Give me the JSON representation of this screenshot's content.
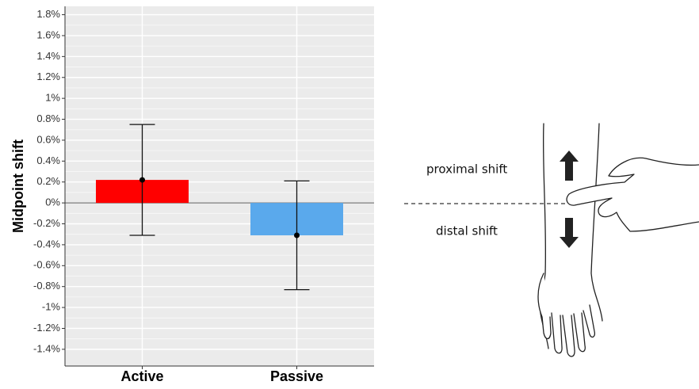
{
  "chart_data": {
    "type": "bar",
    "y_label": "Midpoint shift",
    "categories": [
      "Active",
      "Passive"
    ],
    "values": [
      0.22,
      -0.31
    ],
    "errors": [
      0.53,
      0.52
    ],
    "colors": [
      "#ff0000",
      "#5aa9ec"
    ],
    "ylim": [
      -1.56,
      1.88
    ],
    "yticks": [
      {
        "value": -1.4,
        "label": "-1.4%"
      },
      {
        "value": -1.2,
        "label": "-1.2%"
      },
      {
        "value": -1,
        "label": "-1%"
      },
      {
        "value": -0.8,
        "label": "-0.8%"
      },
      {
        "value": -0.6,
        "label": "-0.6%"
      },
      {
        "value": -0.4,
        "label": "-0.4%"
      },
      {
        "value": -0.2,
        "label": "-0.2%"
      },
      {
        "value": 0,
        "label": "0%"
      },
      {
        "value": 0.2,
        "label": "0.2%"
      },
      {
        "value": 0.4,
        "label": "0.4%"
      },
      {
        "value": 0.6,
        "label": "0.6%"
      },
      {
        "value": 0.8,
        "label": "0.8%"
      },
      {
        "value": 1,
        "label": "1%"
      },
      {
        "value": 1.2,
        "label": "1.2%"
      },
      {
        "value": 1.4,
        "label": "1.4%"
      },
      {
        "value": 1.6,
        "label": "1.6%"
      },
      {
        "value": 1.8,
        "label": "1.8%"
      }
    ],
    "grid": true
  },
  "diagram": {
    "labels": [
      "proximal shift",
      "distal shift"
    ]
  }
}
